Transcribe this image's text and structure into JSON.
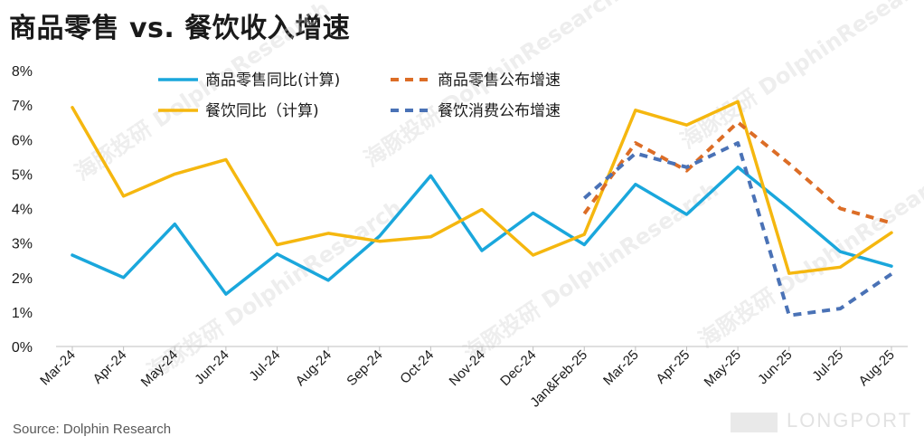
{
  "title": "商品零售 vs. 餐饮收入增速",
  "source": "Source: Dolphin Research",
  "watermark_text": "海豚投研 DolphinResearch",
  "brand_text": "LONGPORT",
  "chart_data": {
    "type": "line",
    "title": "商品零售 vs. 餐饮收入增速",
    "xlabel": "",
    "ylabel": "",
    "ylim": [
      0,
      8
    ],
    "yticks": [
      "0%",
      "1%",
      "2%",
      "3%",
      "4%",
      "5%",
      "6%",
      "7%",
      "8%"
    ],
    "grid": false,
    "legend_position": "top",
    "categories": [
      "Mar-24",
      "Apr-24",
      "May-24",
      "Jun-24",
      "Jul-24",
      "Aug-24",
      "Sep-24",
      "Oct-24",
      "Nov-24",
      "Dec-24",
      "Jan&Feb-25",
      "Mar-25",
      "Apr-25",
      "May-25",
      "Jun-25",
      "Jul-25",
      "Aug-25"
    ],
    "series": [
      {
        "name": "商品零售同比(计算)",
        "color": "#1aa7dc",
        "dash": false,
        "values": [
          2.65,
          2.0,
          3.55,
          1.52,
          2.68,
          1.92,
          3.2,
          4.95,
          2.78,
          3.87,
          2.95,
          4.7,
          3.83,
          5.2,
          4.0,
          2.75,
          2.33
        ]
      },
      {
        "name": "餐饮同比（计算)",
        "color": "#f5b70f",
        "dash": false,
        "values": [
          6.93,
          4.36,
          5.0,
          5.42,
          2.95,
          3.28,
          3.05,
          3.18,
          3.97,
          2.65,
          3.25,
          6.85,
          6.42,
          7.1,
          2.12,
          2.3,
          3.3
        ]
      },
      {
        "name": "商品零售公布增速",
        "color": "#dc6d26",
        "dash": true,
        "values": [
          null,
          null,
          null,
          null,
          null,
          null,
          null,
          null,
          null,
          null,
          3.85,
          5.9,
          5.1,
          6.5,
          5.3,
          4.0,
          3.58
        ]
      },
      {
        "name": "餐饮消费公布增速",
        "color": "#4a72b6",
        "dash": true,
        "values": [
          null,
          null,
          null,
          null,
          null,
          null,
          null,
          null,
          null,
          null,
          4.3,
          5.6,
          5.2,
          5.9,
          0.9,
          1.1,
          2.1
        ]
      }
    ]
  }
}
